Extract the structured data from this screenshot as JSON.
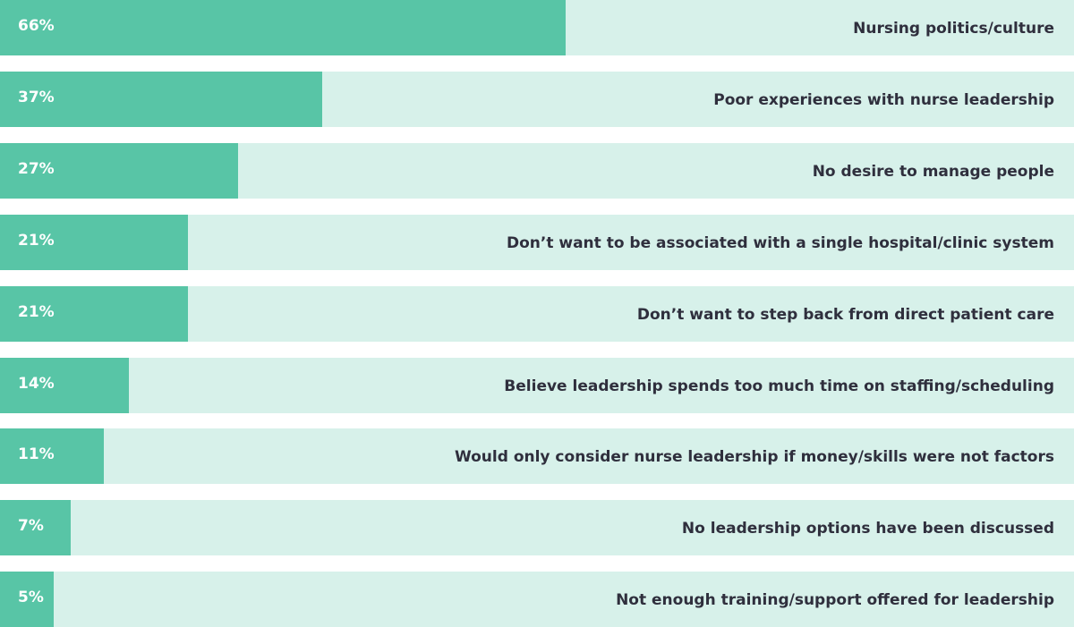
{
  "chart_data": {
    "type": "bar",
    "orientation": "horizontal",
    "categories": [
      "Nursing politics/culture",
      "Poor experiences with nurse leadership",
      "No desire to manage people",
      "Don’t want to be associated with a single hospital/clinic system",
      "Don’t want to step back from direct patient care",
      "Believe leadership spends too much time on staffing/scheduling",
      "Would only consider nurse leadership if money/skills were not factors",
      "No leadership options have been discussed",
      "Not enough training/support offered for leadership"
    ],
    "values": [
      66,
      37,
      27,
      21,
      21,
      14,
      11,
      7,
      5
    ],
    "value_labels": [
      "66%",
      "37%",
      "27%",
      "21%",
      "21%",
      "14%",
      "11%",
      "7%",
      "5%"
    ],
    "colors": {
      "bar": "#58c5a6",
      "track": "#d7f1ea",
      "label": "#2f2f3d",
      "value_text": "#ffffff"
    },
    "grid": false,
    "legend": "none"
  }
}
